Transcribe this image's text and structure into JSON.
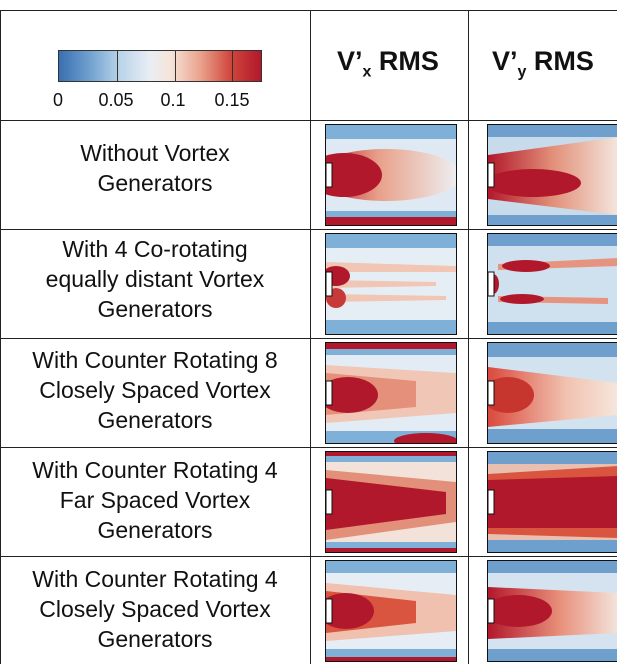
{
  "colorbar": {
    "ticks": [
      "0",
      "0.05",
      "0.1",
      "0.15"
    ],
    "colors": [
      "#3a6fb0",
      "#6fa0cf",
      "#e8eef4",
      "#eaa38d",
      "#d0463c",
      "#b2182b"
    ]
  },
  "columns": [
    {
      "main": "V’",
      "sub": "x",
      "suffix": " RMS"
    },
    {
      "main": "V’",
      "sub": "y",
      "suffix": " RMS"
    }
  ],
  "rows": [
    {
      "lines": [
        "Without Vortex",
        "Generators"
      ]
    },
    {
      "lines": [
        "With 4 Co-rotating",
        "equally distant Vortex",
        "Generators"
      ]
    },
    {
      "lines": [
        "With Counter Rotating 8",
        "Closely Spaced Vortex",
        "Generators"
      ]
    },
    {
      "lines": [
        "With Counter Rotating 4",
        "Far Spaced Vortex",
        "Generators"
      ]
    },
    {
      "lines": [
        "With Counter Rotating 4",
        "Closely Spaced Vortex",
        "Generators"
      ]
    }
  ]
}
